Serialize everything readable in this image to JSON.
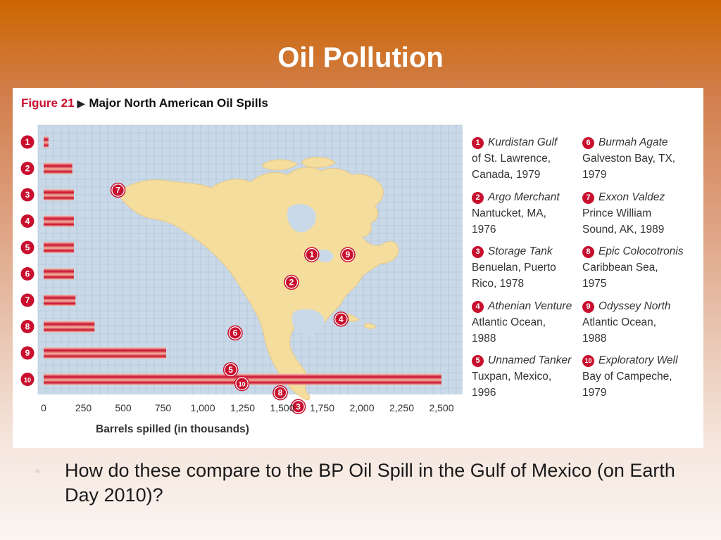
{
  "slide": {
    "title": "Oil Pollution",
    "bullet": "^",
    "question": "How do these compare to the BP Oil Spill in the Gulf of Mexico (on Earth Day 2010)?"
  },
  "figure": {
    "number": "Figure 21",
    "arrow": "▶",
    "title": "Major North American Oil Spills"
  },
  "chart_data": {
    "type": "bar",
    "orientation": "horizontal",
    "title": "Major North American Oil Spills",
    "xlabel": "Barrels spilled (in thousands)",
    "ylabel": "",
    "xlim": [
      0,
      2500
    ],
    "xticks": [
      "0",
      "250",
      "500",
      "750",
      "1,000",
      "1,250",
      "1,500",
      "1,750",
      "2,000",
      "2,250",
      "2,500"
    ],
    "categories": [
      "1",
      "2",
      "3",
      "4",
      "5",
      "6",
      "7",
      "8",
      "9",
      "10"
    ],
    "values": [
      30,
      180,
      190,
      190,
      190,
      190,
      200,
      320,
      770,
      2500
    ],
    "grid": true,
    "colors": {
      "bar_light": "#f4b6a0",
      "bar_dark": "#c8102e",
      "badge": "#c8102e",
      "ocean": "#c9d9e8",
      "land": "#f5dd9e",
      "grid": "#aabfd3"
    }
  },
  "map": {
    "labels": [
      {
        "n": "7",
        "lon": -147,
        "lat": 61
      },
      {
        "n": "9",
        "lon": -45,
        "lat": 47
      },
      {
        "n": "1",
        "lon": -61,
        "lat": 47
      },
      {
        "n": "2",
        "lon": -70,
        "lat": 41
      },
      {
        "n": "4",
        "lon": -48,
        "lat": 33
      },
      {
        "n": "6",
        "lon": -95,
        "lat": 30
      },
      {
        "n": "5",
        "lon": -97,
        "lat": 22
      },
      {
        "n": "10",
        "lon": -92,
        "lat": 19
      },
      {
        "n": "8",
        "lon": -75,
        "lat": 17
      },
      {
        "n": "3",
        "lon": -67,
        "lat": 14
      }
    ]
  },
  "legend": [
    {
      "n": "1",
      "name": "Kurdistan Gulf",
      "place": "of St. Lawrence,",
      "year": "Canada, 1979"
    },
    {
      "n": "2",
      "name": "Argo Merchant",
      "place": "Nantucket, MA,",
      "year": "1976"
    },
    {
      "n": "3",
      "name": "Storage Tank",
      "place": "Benuelan, Puerto",
      "year": "Rico, 1978"
    },
    {
      "n": "4",
      "name": "Athenian Venture",
      "place": "Atlantic Ocean,",
      "year": "1988"
    },
    {
      "n": "5",
      "name": "Unnamed Tanker",
      "place": "Tuxpan, Mexico,",
      "year": "1996"
    },
    {
      "n": "6",
      "name": "Burmah Agate",
      "place": "Galveston Bay, TX,",
      "year": "1979"
    },
    {
      "n": "7",
      "name": "Exxon Valdez",
      "place": "Prince William",
      "year": "Sound, AK, 1989"
    },
    {
      "n": "8",
      "name": "Epic Colocotronis",
      "place": "Caribbean Sea,",
      "year": "1975"
    },
    {
      "n": "9",
      "name": "Odyssey North",
      "place": "Atlantic Ocean,",
      "year": "1988"
    },
    {
      "n": "10",
      "name": "Exploratory Well",
      "place": "Bay of Campeche,",
      "year": "1979"
    }
  ]
}
